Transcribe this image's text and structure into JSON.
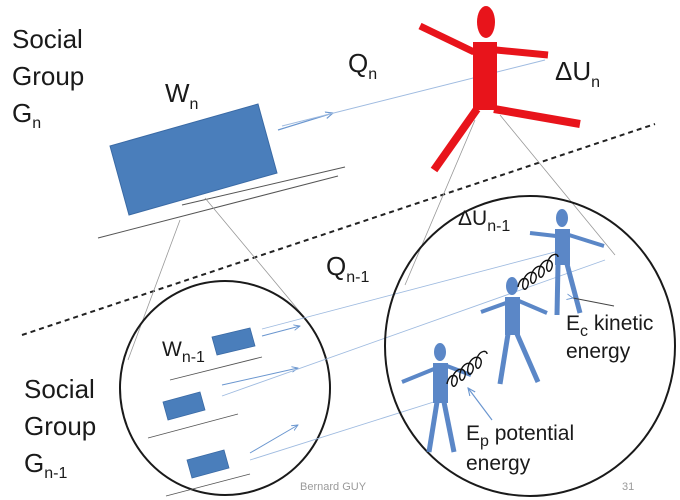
{
  "diagram": {
    "group_n": {
      "line1": "Social",
      "line2": "Group",
      "G": "G",
      "sub": "n"
    },
    "group_n1": {
      "line1": "Social",
      "line2": "Group",
      "G": "G",
      "sub": "n-1"
    },
    "W_n": {
      "main": "W",
      "sub": "n"
    },
    "Q_n": {
      "main": "Q",
      "sub": "n"
    },
    "dU_n": {
      "main": "ΔU",
      "sub": "n"
    },
    "Q_n1": {
      "main": "Q",
      "sub": "n-1"
    },
    "W_n1": {
      "main": "W",
      "sub": "n-1"
    },
    "dU_n1": {
      "main": "ΔU",
      "sub": "n-1"
    },
    "Ec": {
      "main": "E",
      "sub": "c",
      "rest": " kinetic",
      "line2": "energy"
    },
    "Ep": {
      "main": "E",
      "sub": "p",
      "rest": " potential",
      "line2": "energy"
    }
  },
  "footer": {
    "author": "Bernard GUY",
    "page": "31"
  },
  "colors": {
    "block": "#4a7ebb",
    "block_stroke": "#3a6aa5",
    "red_figure": "#e8141b",
    "blue_figure": "#5b87c7"
  }
}
